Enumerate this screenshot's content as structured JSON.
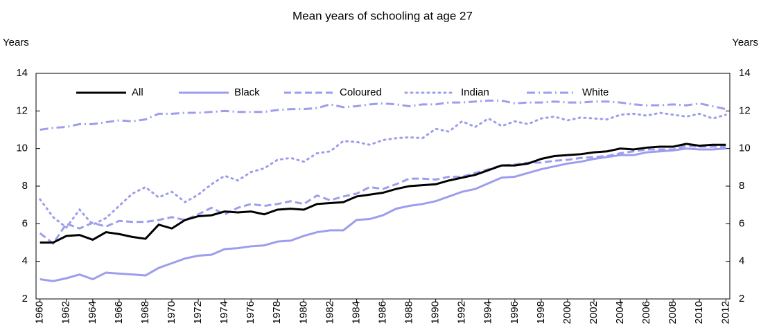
{
  "chart_data": {
    "type": "line",
    "title": "Mean years of schooling at age 27",
    "y_label": "Years",
    "x": [
      1960,
      1961,
      1962,
      1963,
      1964,
      1965,
      1966,
      1967,
      1968,
      1969,
      1970,
      1971,
      1972,
      1973,
      1974,
      1975,
      1976,
      1977,
      1978,
      1979,
      1980,
      1981,
      1982,
      1983,
      1984,
      1985,
      1986,
      1987,
      1988,
      1989,
      1990,
      1991,
      1992,
      1993,
      1994,
      1995,
      1996,
      1997,
      1998,
      1999,
      2000,
      2001,
      2002,
      2003,
      2004,
      2005,
      2006,
      2007,
      2008,
      2009,
      2010,
      2011,
      2012
    ],
    "xlim": [
      1959.7,
      2012.3
    ],
    "xticks": [
      1960,
      1962,
      1964,
      1966,
      1968,
      1970,
      1972,
      1974,
      1976,
      1978,
      1980,
      1982,
      1984,
      1986,
      1988,
      1990,
      1992,
      1994,
      1996,
      1998,
      2000,
      2002,
      2004,
      2006,
      2008,
      2010,
      2012
    ],
    "ylim": [
      2,
      14
    ],
    "yticks": [
      2,
      4,
      6,
      8,
      10,
      12,
      14
    ],
    "legend": "top",
    "series": [
      {
        "name": "All",
        "color": "#000000",
        "line_style": "solid",
        "values": [
          5.0,
          5.0,
          5.35,
          5.4,
          5.15,
          5.55,
          5.45,
          5.3,
          5.2,
          5.95,
          5.75,
          6.2,
          6.4,
          6.45,
          6.65,
          6.6,
          6.65,
          6.5,
          6.75,
          6.8,
          6.75,
          7.05,
          7.1,
          7.15,
          7.45,
          7.55,
          7.65,
          7.85,
          8.0,
          8.05,
          8.1,
          8.3,
          8.45,
          8.6,
          8.85,
          9.1,
          9.1,
          9.2,
          9.45,
          9.6,
          9.65,
          9.7,
          9.8,
          9.85,
          10.0,
          9.95,
          10.05,
          10.1,
          10.1,
          10.25,
          10.15,
          10.2,
          10.2
        ]
      },
      {
        "name": "Black",
        "color": "#9d9dee",
        "line_style": "solid",
        "values": [
          3.05,
          2.95,
          3.1,
          3.3,
          3.05,
          3.4,
          3.35,
          3.3,
          3.25,
          3.65,
          3.9,
          4.15,
          4.3,
          4.35,
          4.65,
          4.7,
          4.8,
          4.85,
          5.05,
          5.1,
          5.35,
          5.55,
          5.65,
          5.65,
          6.2,
          6.25,
          6.45,
          6.8,
          6.95,
          7.05,
          7.2,
          7.45,
          7.7,
          7.85,
          8.15,
          8.45,
          8.5,
          8.7,
          8.9,
          9.05,
          9.2,
          9.3,
          9.45,
          9.55,
          9.65,
          9.65,
          9.8,
          9.85,
          9.9,
          10.0,
          9.95,
          9.95,
          10.0
        ]
      },
      {
        "name": "Coloured",
        "color": "#9d9dee",
        "line_style": "dashed",
        "values": [
          5.5,
          4.95,
          6.0,
          5.75,
          6.05,
          5.85,
          6.15,
          6.1,
          6.1,
          6.2,
          6.35,
          6.2,
          6.5,
          6.85,
          6.5,
          6.85,
          7.05,
          6.95,
          7.05,
          7.2,
          7.05,
          7.5,
          7.25,
          7.45,
          7.6,
          7.95,
          7.85,
          8.1,
          8.4,
          8.4,
          8.35,
          8.5,
          8.5,
          8.7,
          8.9,
          9.1,
          9.15,
          9.25,
          9.25,
          9.35,
          9.4,
          9.5,
          9.55,
          9.6,
          9.75,
          9.85,
          9.95,
          9.95,
          9.95,
          10.15,
          10.1,
          10.1,
          10.1
        ]
      },
      {
        "name": "Indian",
        "color": "#9d9dee",
        "line_style": "dotted",
        "values": [
          7.3,
          6.35,
          5.8,
          6.75,
          5.95,
          6.3,
          6.95,
          7.6,
          7.95,
          7.4,
          7.7,
          7.15,
          7.55,
          8.1,
          8.55,
          8.3,
          8.75,
          8.95,
          9.4,
          9.5,
          9.3,
          9.75,
          9.85,
          10.4,
          10.35,
          10.2,
          10.45,
          10.55,
          10.6,
          10.55,
          11.05,
          10.9,
          11.45,
          11.15,
          11.6,
          11.2,
          11.45,
          11.3,
          11.6,
          11.7,
          11.5,
          11.65,
          11.6,
          11.55,
          11.8,
          11.85,
          11.75,
          11.9,
          11.8,
          11.7,
          11.85,
          11.6,
          11.8
        ]
      },
      {
        "name": "White",
        "color": "#9d9dee",
        "line_style": "dashdot",
        "values": [
          11.0,
          11.1,
          11.15,
          11.3,
          11.3,
          11.4,
          11.5,
          11.45,
          11.55,
          11.85,
          11.85,
          11.9,
          11.9,
          11.95,
          12.0,
          11.95,
          11.95,
          11.95,
          12.05,
          12.1,
          12.1,
          12.15,
          12.35,
          12.2,
          12.25,
          12.35,
          12.4,
          12.35,
          12.25,
          12.35,
          12.35,
          12.45,
          12.45,
          12.5,
          12.55,
          12.55,
          12.4,
          12.45,
          12.45,
          12.5,
          12.45,
          12.45,
          12.5,
          12.5,
          12.45,
          12.35,
          12.3,
          12.3,
          12.35,
          12.3,
          12.4,
          12.25,
          12.1
        ]
      }
    ]
  }
}
